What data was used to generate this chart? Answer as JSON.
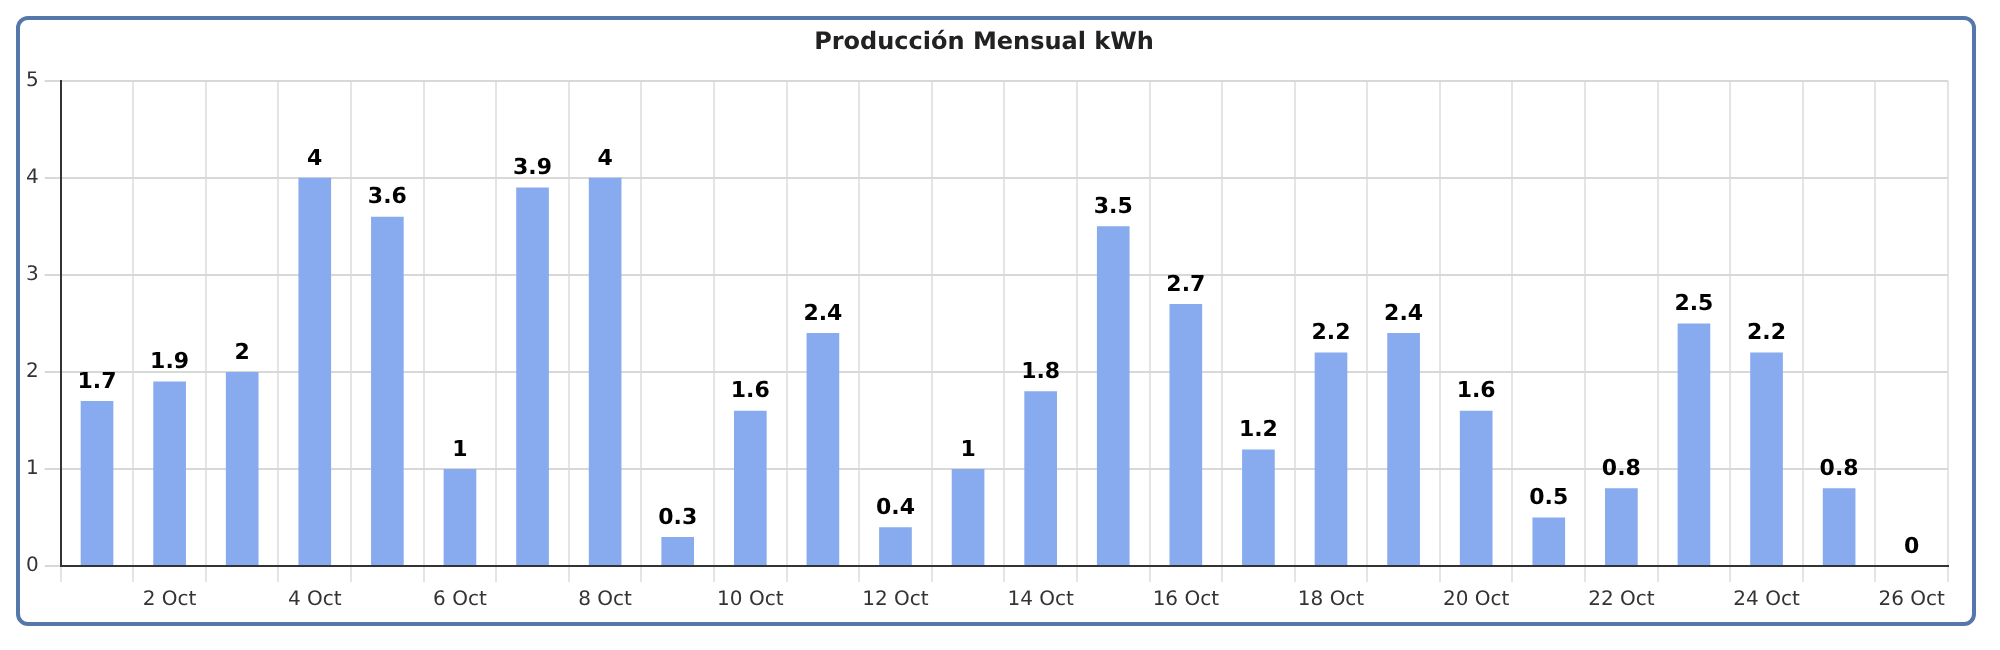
{
  "chart_data": {
    "type": "bar",
    "title": "Producción Mensual kWh",
    "categories": [
      null,
      "2 Oct",
      null,
      "4 Oct",
      null,
      "6 Oct",
      null,
      "8 Oct",
      null,
      "10 Oct",
      null,
      "12 Oct",
      null,
      "14 Oct",
      null,
      "16 Oct",
      null,
      "18 Oct",
      null,
      "20 Oct",
      null,
      "22 Oct",
      null,
      "24 Oct",
      null,
      "26 Oct"
    ],
    "values": [
      1.7,
      1.9,
      2,
      4,
      3.6,
      1,
      3.9,
      4,
      0.3,
      1.6,
      2.4,
      0.4,
      1,
      1.8,
      3.5,
      2.7,
      1.2,
      2.2,
      2.4,
      1.6,
      0.5,
      0.8,
      2.5,
      2.2,
      0.8,
      0
    ],
    "color": "#88aaee",
    "ylim": [
      0,
      5
    ],
    "yticks": [
      0,
      1,
      2,
      3,
      4,
      5
    ],
    "grid": true,
    "data_labels": true
  }
}
